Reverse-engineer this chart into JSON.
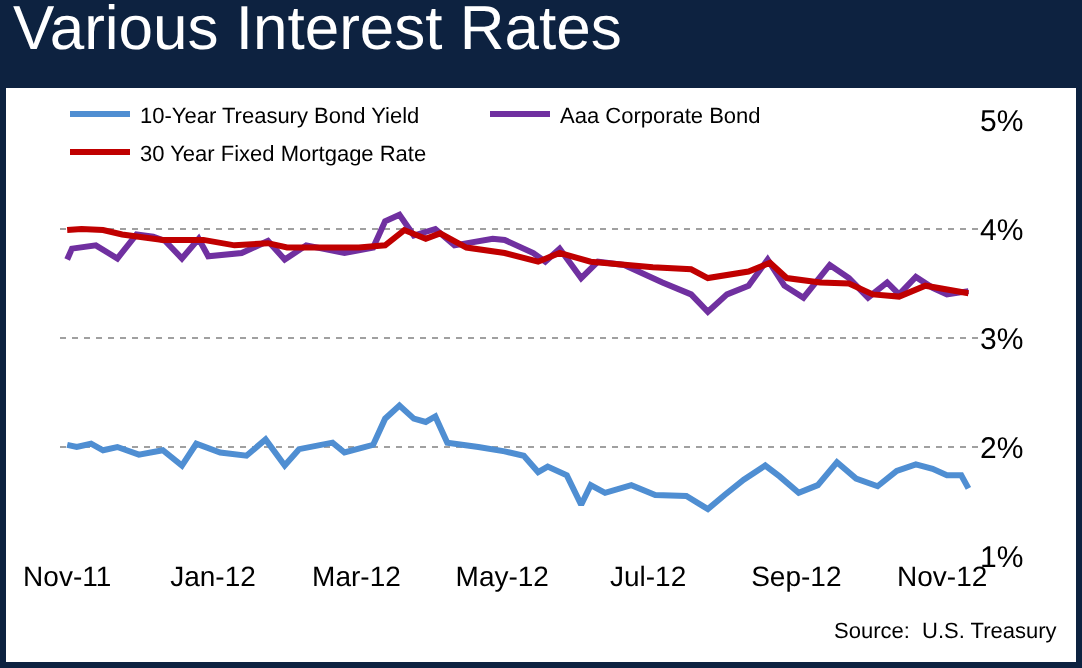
{
  "chart_data": {
    "type": "line",
    "title": "Various Interest Rates",
    "series": [
      {
        "name": "10-Year Treasury Bond Yield",
        "color": "#4f8ed2",
        "x": [
          "2011-11-01",
          "2011-11-05",
          "2011-11-11",
          "2011-11-16",
          "2011-11-22",
          "2011-12-01",
          "2011-12-11",
          "2011-12-19",
          "2011-12-25",
          "2012-01-04",
          "2012-01-15",
          "2012-01-23",
          "2012-01-31",
          "2012-02-06",
          "2012-02-20",
          "2012-02-25",
          "2012-03-08",
          "2012-03-13",
          "2012-03-19",
          "2012-03-25",
          "2012-03-30",
          "2012-04-03",
          "2012-04-08",
          "2012-04-21",
          "2012-05-02",
          "2012-05-10",
          "2012-05-16",
          "2012-05-20",
          "2012-05-28",
          "2012-06-03",
          "2012-06-07",
          "2012-06-13",
          "2012-06-24",
          "2012-07-04",
          "2012-07-17",
          "2012-07-26",
          "2012-08-02",
          "2012-08-10",
          "2012-08-19",
          "2012-08-25",
          "2012-09-02",
          "2012-09-10",
          "2012-09-18",
          "2012-09-26",
          "2012-10-05",
          "2012-10-13",
          "2012-10-21",
          "2012-10-28",
          "2012-11-03",
          "2012-11-09",
          "2012-11-12"
        ],
        "values": [
          2.02,
          2.0,
          2.03,
          1.97,
          2.0,
          1.93,
          1.97,
          1.83,
          2.03,
          1.95,
          1.92,
          2.07,
          1.83,
          1.98,
          2.04,
          1.95,
          2.02,
          2.26,
          2.38,
          2.26,
          2.23,
          2.28,
          2.04,
          2.0,
          1.96,
          1.92,
          1.77,
          1.82,
          1.74,
          1.47,
          1.65,
          1.58,
          1.65,
          1.56,
          1.55,
          1.43,
          1.56,
          1.7,
          1.83,
          1.73,
          1.58,
          1.65,
          1.86,
          1.71,
          1.64,
          1.78,
          1.84,
          1.8,
          1.74,
          1.74,
          1.62
        ]
      },
      {
        "name": "Aaa Corporate Bond",
        "color": "#7030a0",
        "x": [
          "2011-11-01",
          "2011-11-03",
          "2011-11-13",
          "2011-11-22",
          "2011-11-30",
          "2011-12-07",
          "2011-12-12",
          "2011-12-19",
          "2011-12-26",
          "2011-12-30",
          "2012-01-13",
          "2012-01-24",
          "2012-01-31",
          "2012-02-09",
          "2012-02-25",
          "2012-03-08",
          "2012-03-13",
          "2012-03-19",
          "2012-03-25",
          "2012-04-03",
          "2012-04-11",
          "2012-04-27",
          "2012-05-02",
          "2012-05-14",
          "2012-05-19",
          "2012-05-25",
          "2012-06-03",
          "2012-06-10",
          "2012-06-21",
          "2012-07-07",
          "2012-07-19",
          "2012-07-26",
          "2012-08-03",
          "2012-08-12",
          "2012-08-20",
          "2012-08-27",
          "2012-09-04",
          "2012-09-15",
          "2012-09-23",
          "2012-10-01",
          "2012-10-09",
          "2012-10-14",
          "2012-10-21",
          "2012-10-28",
          "2012-11-03",
          "2012-11-12"
        ],
        "values": [
          3.72,
          3.82,
          3.85,
          3.73,
          3.95,
          3.93,
          3.89,
          3.73,
          3.91,
          3.75,
          3.78,
          3.89,
          3.72,
          3.85,
          3.78,
          3.83,
          4.07,
          4.13,
          3.94,
          4.0,
          3.85,
          3.91,
          3.9,
          3.78,
          3.7,
          3.82,
          3.55,
          3.7,
          3.67,
          3.51,
          3.4,
          3.24,
          3.4,
          3.48,
          3.72,
          3.48,
          3.37,
          3.67,
          3.55,
          3.37,
          3.51,
          3.4,
          3.56,
          3.46,
          3.4,
          3.43
        ]
      },
      {
        "name": "30 Year Fixed Mortgage Rate",
        "color": "#c00000",
        "x": [
          "2011-11-01",
          "2011-11-07",
          "2011-11-16",
          "2011-11-24",
          "2011-12-11",
          "2011-12-28",
          "2012-01-10",
          "2012-01-24",
          "2012-02-01",
          "2012-02-15",
          "2012-03-02",
          "2012-03-13",
          "2012-03-21",
          "2012-03-30",
          "2012-04-05",
          "2012-04-16",
          "2012-05-02",
          "2012-05-16",
          "2012-05-25",
          "2012-06-07",
          "2012-07-03",
          "2012-07-19",
          "2012-07-26",
          "2012-08-12",
          "2012-08-21",
          "2012-08-28",
          "2012-09-11",
          "2012-09-23",
          "2012-10-03",
          "2012-10-14",
          "2012-10-25",
          "2012-11-12"
        ],
        "values": [
          3.99,
          4.0,
          3.99,
          3.95,
          3.9,
          3.9,
          3.85,
          3.87,
          3.83,
          3.83,
          3.83,
          3.85,
          3.99,
          3.91,
          3.96,
          3.83,
          3.78,
          3.7,
          3.78,
          3.7,
          3.65,
          3.63,
          3.55,
          3.61,
          3.69,
          3.55,
          3.51,
          3.5,
          3.4,
          3.38,
          3.48,
          3.41
        ]
      }
    ],
    "xlim": [
      "2011-10-29",
      "2012-11-16"
    ],
    "xticks": [
      {
        "value": "2011-11-01",
        "label": "Nov-11"
      },
      {
        "value": "2012-01-01",
        "label": "Jan-12"
      },
      {
        "value": "2012-03-01",
        "label": "Mar-12"
      },
      {
        "value": "2012-05-01",
        "label": "May-12"
      },
      {
        "value": "2012-07-01",
        "label": "Jul-12"
      },
      {
        "value": "2012-09-01",
        "label": "Sep-12"
      },
      {
        "value": "2012-11-01",
        "label": "Nov-12"
      }
    ],
    "ylim": [
      1,
      5
    ],
    "yticks": [
      {
        "value": 1,
        "label": "1%"
      },
      {
        "value": 2,
        "label": "2%"
      },
      {
        "value": 3,
        "label": "3%"
      },
      {
        "value": 4,
        "label": "4%"
      },
      {
        "value": 5,
        "label": "5%"
      }
    ],
    "grid": "y",
    "legend": "top left",
    "marker": "none",
    "line_style": "solid",
    "annotations": [
      "Source:  U.S. Treasury"
    ]
  }
}
